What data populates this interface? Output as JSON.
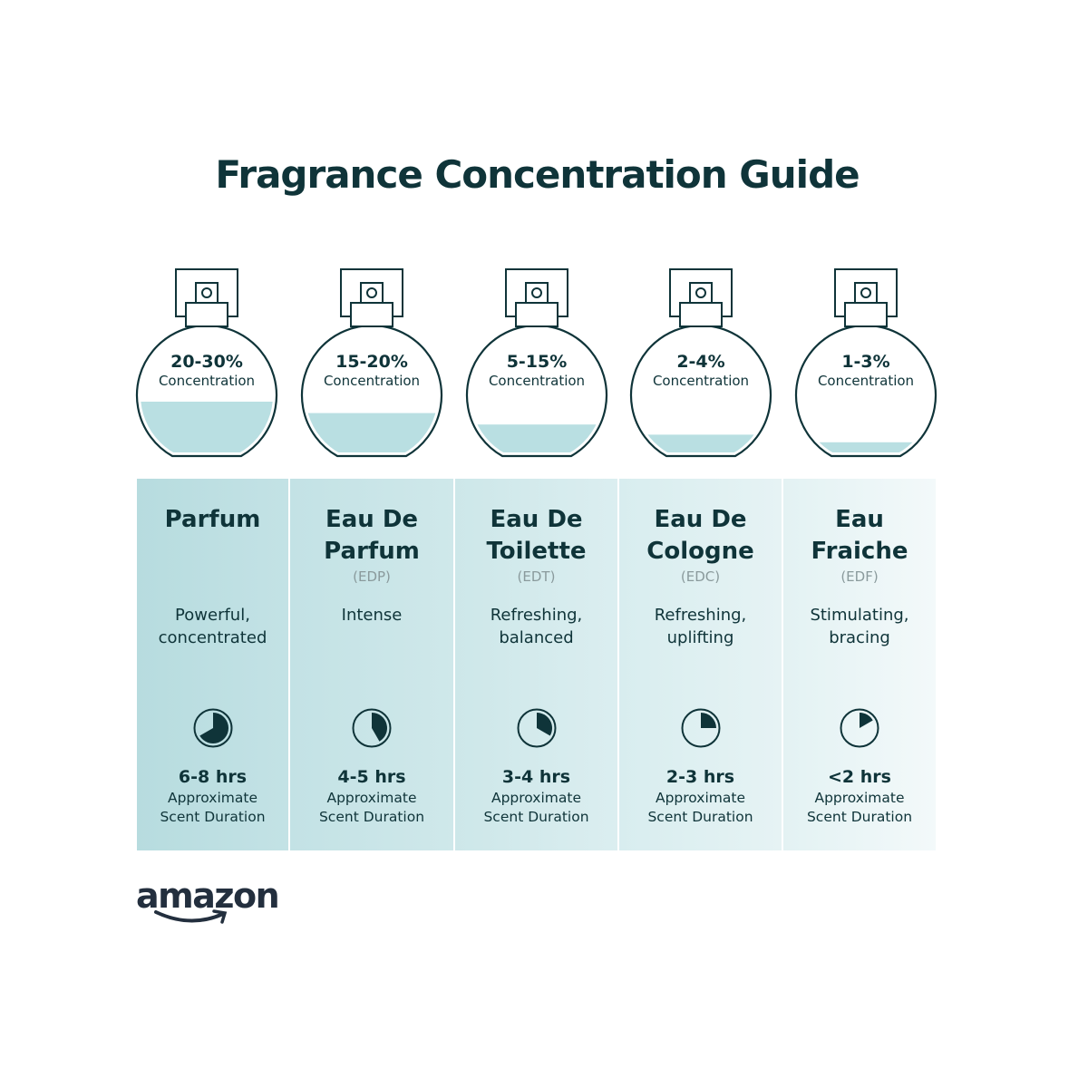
{
  "title": "Fragrance Concentration Guide",
  "colors": {
    "text": "#0f3439",
    "fill": "#b9dfe2",
    "abbr": "#8a9a9c"
  },
  "types": [
    {
      "concentration": "20-30%",
      "concentration_label": "Concentration",
      "fill_level": 0.4,
      "name": "Parfum",
      "abbr": "",
      "description": "Powerful, concentrated",
      "duration": "6-8 hrs",
      "duration_label_1": "Approximate",
      "duration_label_2": "Scent Duration",
      "clock_hours": 8,
      "bg": [
        "#b7dcdf",
        "#c3e2e5"
      ]
    },
    {
      "concentration": "15-20%",
      "concentration_label": "Concentration",
      "fill_level": 0.31,
      "name": "Eau De Parfum",
      "abbr": "(EDP)",
      "description": "Intense",
      "duration": "4-5 hrs",
      "duration_label_1": "Approximate",
      "duration_label_2": "Scent Duration",
      "clock_hours": 5,
      "bg": [
        "#c3e2e5",
        "#cfe8ea"
      ]
    },
    {
      "concentration": "5-15%",
      "concentration_label": "Concentration",
      "fill_level": 0.22,
      "name": "Eau De Toilette",
      "abbr": "(EDT)",
      "description": "Refreshing, balanced",
      "duration": "3-4 hrs",
      "duration_label_1": "Approximate",
      "duration_label_2": "Scent Duration",
      "clock_hours": 4,
      "bg": [
        "#cde7e9",
        "#dbeef0"
      ]
    },
    {
      "concentration": "2-4%",
      "concentration_label": "Concentration",
      "fill_level": 0.14,
      "name": "Eau De Cologne",
      "abbr": "(EDC)",
      "description": "Refreshing, uplifting",
      "duration": "2-3 hrs",
      "duration_label_1": "Approximate",
      "duration_label_2": "Scent Duration",
      "clock_hours": 3,
      "bg": [
        "#d8edef",
        "#e6f3f4"
      ]
    },
    {
      "concentration": "1-3%",
      "concentration_label": "Concentration",
      "fill_level": 0.08,
      "name": "Eau Fraiche",
      "abbr": "(EDF)",
      "description": "Stimulating, bracing",
      "duration": "<2 hrs",
      "duration_label_1": "Approximate",
      "duration_label_2": "Scent Duration",
      "clock_hours": 2,
      "bg": [
        "#e3f2f3",
        "#f3f9fa"
      ]
    }
  ],
  "logo": "amazon"
}
